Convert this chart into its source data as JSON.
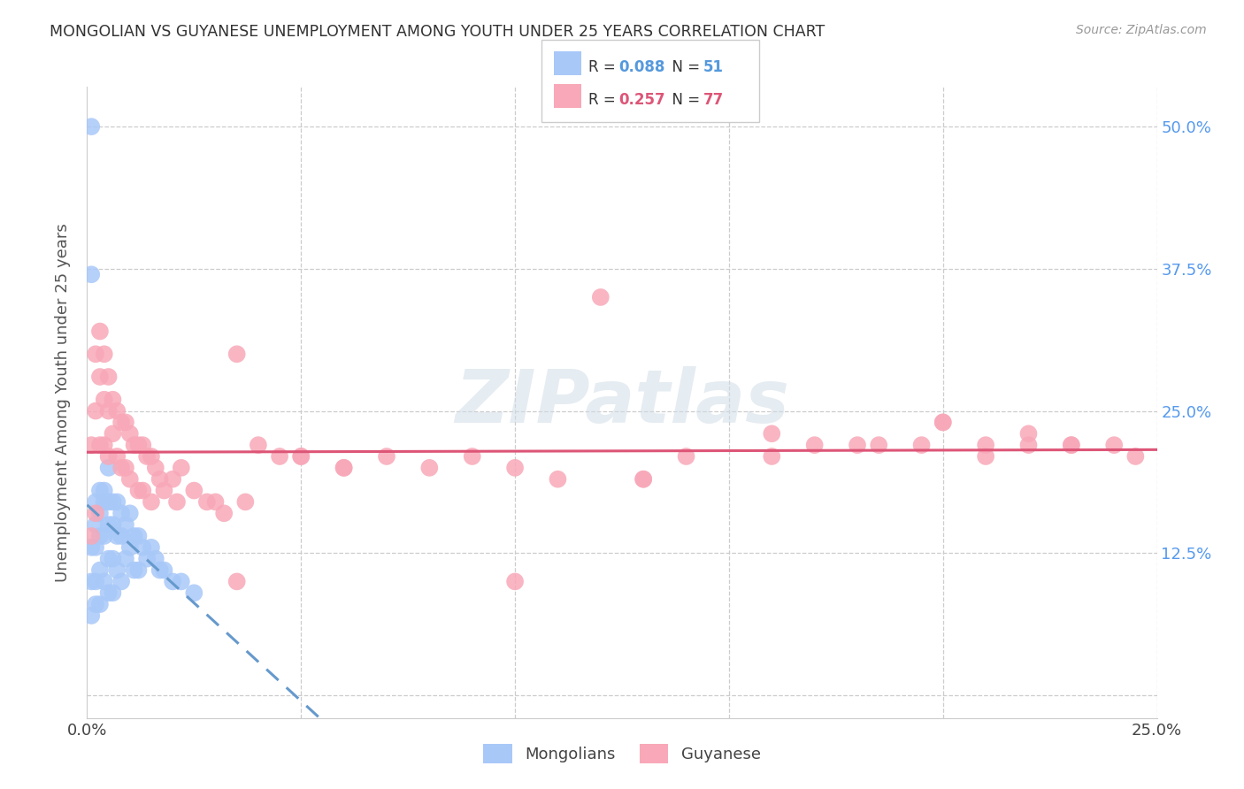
{
  "title": "MONGOLIAN VS GUYANESE UNEMPLOYMENT AMONG YOUTH UNDER 25 YEARS CORRELATION CHART",
  "source": "Source: ZipAtlas.com",
  "ylabel": "Unemployment Among Youth under 25 years",
  "xlim": [
    0.0,
    0.25
  ],
  "ylim": [
    -0.02,
    0.535
  ],
  "color_mongolian": "#a8c8f8",
  "color_guyanese": "#f8a8b8",
  "color_line_mongolian": "#6699cc",
  "color_line_guyanese": "#dd5577",
  "watermark": "ZIPatlas",
  "legend_r1_label": "R = ",
  "legend_r1_val": "0.088",
  "legend_n1_label": "N = ",
  "legend_n1_val": "51",
  "legend_r2_label": "R = ",
  "legend_r2_val": "0.257",
  "legend_n2_label": "N = ",
  "legend_n2_val": "77",
  "legend_color1": "#5599dd",
  "legend_color2": "#dd5577",
  "mongolian_x": [
    0.001,
    0.001,
    0.001,
    0.001,
    0.002,
    0.002,
    0.002,
    0.002,
    0.002,
    0.003,
    0.003,
    0.003,
    0.003,
    0.003,
    0.004,
    0.004,
    0.004,
    0.004,
    0.005,
    0.005,
    0.005,
    0.005,
    0.005,
    0.006,
    0.006,
    0.006,
    0.006,
    0.007,
    0.007,
    0.007,
    0.008,
    0.008,
    0.008,
    0.009,
    0.009,
    0.01,
    0.01,
    0.011,
    0.011,
    0.012,
    0.012,
    0.013,
    0.014,
    0.015,
    0.016,
    0.017,
    0.018,
    0.02,
    0.022,
    0.025,
    0.001
  ],
  "mongolian_y": [
    0.5,
    0.13,
    0.1,
    0.07,
    0.17,
    0.15,
    0.13,
    0.1,
    0.08,
    0.18,
    0.16,
    0.14,
    0.11,
    0.08,
    0.18,
    0.17,
    0.14,
    0.1,
    0.2,
    0.17,
    0.15,
    0.12,
    0.09,
    0.17,
    0.15,
    0.12,
    0.09,
    0.17,
    0.14,
    0.11,
    0.16,
    0.14,
    0.1,
    0.15,
    0.12,
    0.16,
    0.13,
    0.14,
    0.11,
    0.14,
    0.11,
    0.13,
    0.12,
    0.13,
    0.12,
    0.11,
    0.11,
    0.1,
    0.1,
    0.09,
    0.37
  ],
  "guyanese_x": [
    0.001,
    0.001,
    0.002,
    0.002,
    0.002,
    0.003,
    0.003,
    0.003,
    0.004,
    0.004,
    0.004,
    0.005,
    0.005,
    0.005,
    0.006,
    0.006,
    0.007,
    0.007,
    0.008,
    0.008,
    0.009,
    0.009,
    0.01,
    0.01,
    0.011,
    0.012,
    0.012,
    0.013,
    0.013,
    0.014,
    0.015,
    0.015,
    0.016,
    0.017,
    0.018,
    0.02,
    0.021,
    0.022,
    0.025,
    0.028,
    0.03,
    0.032,
    0.035,
    0.037,
    0.04,
    0.045,
    0.05,
    0.06,
    0.07,
    0.08,
    0.09,
    0.1,
    0.11,
    0.12,
    0.13,
    0.14,
    0.16,
    0.17,
    0.18,
    0.2,
    0.21,
    0.22,
    0.23,
    0.035,
    0.05,
    0.06,
    0.1,
    0.13,
    0.16,
    0.185,
    0.195,
    0.2,
    0.21,
    0.22,
    0.23,
    0.24,
    0.245
  ],
  "guyanese_y": [
    0.22,
    0.14,
    0.3,
    0.25,
    0.16,
    0.32,
    0.28,
    0.22,
    0.3,
    0.26,
    0.22,
    0.28,
    0.25,
    0.21,
    0.26,
    0.23,
    0.25,
    0.21,
    0.24,
    0.2,
    0.24,
    0.2,
    0.23,
    0.19,
    0.22,
    0.22,
    0.18,
    0.22,
    0.18,
    0.21,
    0.21,
    0.17,
    0.2,
    0.19,
    0.18,
    0.19,
    0.17,
    0.2,
    0.18,
    0.17,
    0.17,
    0.16,
    0.3,
    0.17,
    0.22,
    0.21,
    0.21,
    0.2,
    0.21,
    0.2,
    0.21,
    0.2,
    0.19,
    0.35,
    0.19,
    0.21,
    0.23,
    0.22,
    0.22,
    0.24,
    0.22,
    0.23,
    0.22,
    0.1,
    0.21,
    0.2,
    0.1,
    0.19,
    0.21,
    0.22,
    0.22,
    0.24,
    0.21,
    0.22,
    0.22,
    0.22,
    0.21
  ]
}
